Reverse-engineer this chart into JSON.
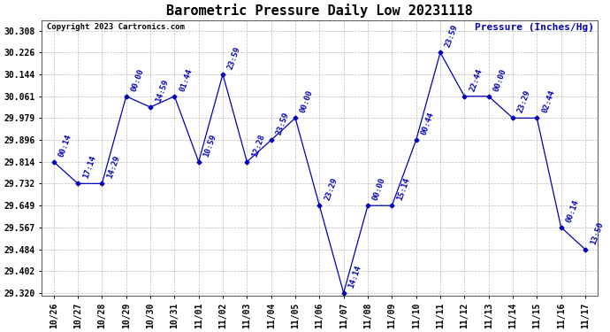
{
  "title": "Barometric Pressure Daily Low 20231118",
  "ylabel": "Pressure (Inches/Hg)",
  "copyright": "Copyright 2023 Cartronics.com",
  "line_color": "#0000BB",
  "background_color": "#ffffff",
  "grid_color": "#bbbbbb",
  "x_labels": [
    "10/26",
    "10/27",
    "10/28",
    "10/29",
    "10/30",
    "10/31",
    "11/01",
    "11/02",
    "11/03",
    "11/04",
    "11/05",
    "11/06",
    "11/07",
    "11/08",
    "11/09",
    "11/10",
    "11/11",
    "11/12",
    "11/13",
    "11/14",
    "11/15",
    "11/16",
    "11/17"
  ],
  "y_values": [
    29.814,
    29.732,
    29.732,
    30.061,
    30.02,
    30.061,
    29.814,
    30.144,
    29.814,
    29.896,
    29.979,
    29.649,
    29.32,
    29.649,
    29.649,
    29.896,
    30.226,
    30.061,
    30.061,
    29.979,
    29.979,
    29.567,
    29.484
  ],
  "point_labels": [
    "00:14",
    "17:14",
    "14:29",
    "00:00",
    "14:59",
    "01:44",
    "10:59",
    "23:59",
    "12:28",
    "23:59",
    "00:00",
    "23:29",
    "14:14",
    "00:00",
    "15:14",
    "00:44",
    "23:59",
    "22:44",
    "00:00",
    "23:29",
    "02:44",
    "00:14",
    "13:50"
  ],
  "ylim_min": 29.32,
  "ylim_max": 30.308,
  "yticks": [
    29.32,
    29.402,
    29.484,
    29.567,
    29.649,
    29.732,
    29.814,
    29.896,
    29.979,
    30.061,
    30.144,
    30.226,
    30.308
  ],
  "title_fontsize": 11,
  "label_fontsize": 8,
  "tick_fontsize": 7,
  "point_label_fontsize": 6.5,
  "figwidth": 6.9,
  "figheight": 3.75,
  "dpi": 100
}
